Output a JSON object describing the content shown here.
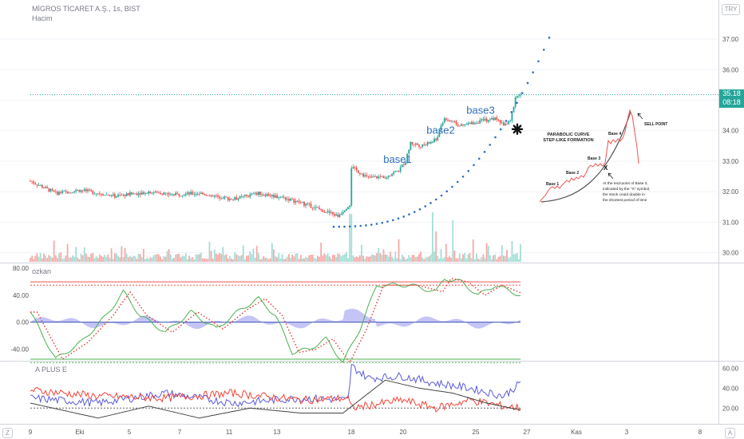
{
  "header": {
    "symbol_title": "MİGROS TİCARET A.Ş., 1s, BIST",
    "volume_label": "Hacim",
    "currency": "TRY"
  },
  "price_tag": {
    "price": "35.18",
    "countdown": "08:18"
  },
  "footer": {
    "left_btn": "Z",
    "right_btn": "A"
  },
  "chart_data": [
    {
      "type": "candlestick",
      "title": "MİGROS TİCARET A.Ş., 1s, BIST",
      "y_ticks": [
        "37.00",
        "36.00",
        "35.00",
        "34.00",
        "33.00",
        "32.00",
        "31.00",
        "30.00"
      ],
      "ylim": [
        29.7,
        37.5
      ],
      "x_ticks": [
        "9",
        "Eki",
        "5",
        "7",
        "11",
        "13",
        "18",
        "20",
        "25",
        "27",
        "Kas",
        "3",
        "8"
      ],
      "last_price": 35.18,
      "annotations": [
        "base1",
        "base2",
        "base3"
      ],
      "volume_series_name": "Hacim",
      "price_anchors": [
        [
          0,
          32.35
        ],
        [
          15,
          31.95
        ],
        [
          30,
          32.05
        ],
        [
          50,
          31.85
        ],
        [
          70,
          32.0
        ],
        [
          85,
          31.9
        ],
        [
          100,
          31.95
        ],
        [
          120,
          31.75
        ],
        [
          135,
          31.95
        ],
        [
          150,
          31.8
        ],
        [
          165,
          31.55
        ],
        [
          175,
          31.35
        ],
        [
          182,
          31.2
        ],
        [
          189,
          31.6
        ],
        [
          190,
          32.8
        ],
        [
          200,
          32.45
        ],
        [
          210,
          32.5
        ],
        [
          218,
          32.7
        ],
        [
          222,
          33.0
        ],
        [
          225,
          33.6
        ],
        [
          232,
          33.5
        ],
        [
          240,
          33.7
        ],
        [
          245,
          34.4
        ],
        [
          255,
          34.15
        ],
        [
          265,
          34.3
        ],
        [
          275,
          34.4
        ],
        [
          280,
          34.2
        ],
        [
          284,
          34.3
        ],
        [
          287,
          35.1
        ],
        [
          290,
          35.2
        ]
      ]
    },
    {
      "type": "line",
      "title": "ozkan",
      "y_ticks": [
        "80.00",
        "40.00",
        "0.00",
        "-40.00"
      ],
      "ylim": [
        -55,
        85
      ],
      "hlines": [
        60,
        55,
        -55,
        -60
      ],
      "series_anchors": [
        [
          0,
          15
        ],
        [
          15,
          -55
        ],
        [
          30,
          -30
        ],
        [
          45,
          10
        ],
        [
          55,
          45
        ],
        [
          65,
          10
        ],
        [
          80,
          -15
        ],
        [
          95,
          15
        ],
        [
          110,
          -10
        ],
        [
          125,
          20
        ],
        [
          135,
          35
        ],
        [
          145,
          10
        ],
        [
          155,
          -45
        ],
        [
          165,
          -40
        ],
        [
          175,
          -25
        ],
        [
          185,
          -60
        ],
        [
          195,
          -10
        ],
        [
          205,
          55
        ],
        [
          225,
          55
        ],
        [
          240,
          45
        ],
        [
          245,
          65
        ],
        [
          255,
          60
        ],
        [
          265,
          40
        ],
        [
          275,
          55
        ],
        [
          290,
          40
        ]
      ]
    },
    {
      "type": "line",
      "title": "A PLUS E",
      "y_ticks": [
        "60.00",
        "40.00",
        "20.00"
      ],
      "ylim": [
        5,
        65
      ],
      "hline": 20,
      "series": [
        {
          "color": "#5b5bd6",
          "anchors": [
            [
              0,
              30
            ],
            [
              40,
              25
            ],
            [
              80,
              35
            ],
            [
              120,
              25
            ],
            [
              160,
              30
            ],
            [
              188,
              28
            ],
            [
              190,
              62
            ],
            [
              200,
              50
            ],
            [
              220,
              52
            ],
            [
              240,
              45
            ],
            [
              260,
              40
            ],
            [
              280,
              32
            ],
            [
              290,
              45
            ]
          ]
        },
        {
          "color": "#f44336",
          "anchors": [
            [
              0,
              38
            ],
            [
              40,
              32
            ],
            [
              80,
              30
            ],
            [
              120,
              35
            ],
            [
              160,
              28
            ],
            [
              188,
              30
            ],
            [
              190,
              20
            ],
            [
              220,
              28
            ],
            [
              240,
              20
            ],
            [
              260,
              28
            ],
            [
              280,
              22
            ],
            [
              290,
              20
            ]
          ]
        },
        {
          "color": "#444444",
          "anchors": [
            [
              0,
              25
            ],
            [
              40,
              10
            ],
            [
              70,
              22
            ],
            [
              100,
              10
            ],
            [
              130,
              20
            ],
            [
              160,
              15
            ],
            [
              185,
              15
            ],
            [
              210,
              48
            ],
            [
              230,
              40
            ],
            [
              250,
              35
            ],
            [
              270,
              25
            ],
            [
              290,
              18
            ]
          ]
        }
      ]
    }
  ],
  "inset": {
    "title": "PARABOLIC CURVE",
    "subtitle": "STEP-LIKE FORMATION",
    "base_labels": [
      "Base 1",
      "Base 2",
      "Base 3",
      "Base 4"
    ],
    "x_marker": "X",
    "sell_point": "SELL POINT",
    "note_lines": [
      "At the end-point of Base 3,",
      "indicated by the \"X\" symbol,",
      "the stock could double in",
      "the shortest period of time"
    ]
  },
  "colors": {
    "up": "#26a69a",
    "down": "#ef5350",
    "accent": "#2962ff"
  }
}
